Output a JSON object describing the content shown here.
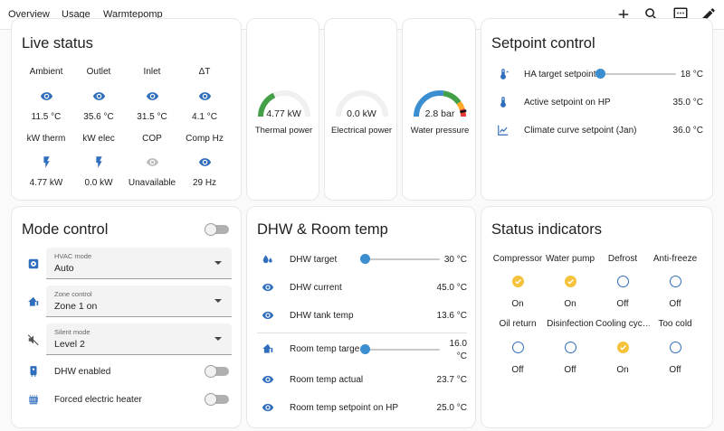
{
  "tabs": [
    {
      "label": "Overview"
    },
    {
      "label": "Usage"
    },
    {
      "label": "Warmtepomp"
    }
  ],
  "toolbar_icons": [
    "plus-icon",
    "search-icon",
    "chat-icon",
    "pencil-icon"
  ],
  "live_status": {
    "title": "Live status",
    "cells": [
      {
        "label": "Ambient",
        "value": "11.5 °C",
        "icon": "eye-icon"
      },
      {
        "label": "Outlet",
        "value": "35.6 °C",
        "icon": "eye-icon"
      },
      {
        "label": "Inlet",
        "value": "31.5 °C",
        "icon": "eye-icon"
      },
      {
        "label": "ΔT",
        "value": "4.1 °C",
        "icon": "eye-icon"
      },
      {
        "label": "kW therm",
        "value": "4.77 kW",
        "icon": "flash-icon"
      },
      {
        "label": "kW elec",
        "value": "0.0 kW",
        "icon": "flash-icon"
      },
      {
        "label": "COP",
        "value": "Unavailable",
        "icon": "eye-icon"
      },
      {
        "label": "Comp Hz",
        "value": "29 Hz",
        "icon": "eye-icon"
      }
    ]
  },
  "gauges": [
    {
      "value": "4.77 kW",
      "label": "Thermal power",
      "fraction": 0.36,
      "color": "#43a047"
    },
    {
      "value": "0.0 kW",
      "label": "Electrical power",
      "fraction": 0.0,
      "color": "#43a047"
    },
    {
      "value": "2.8 bar",
      "label": "Water pressure",
      "fraction": 0.93,
      "color": "#3b8ed0"
    }
  ],
  "setpoint_control": {
    "title": "Setpoint control",
    "rows": [
      {
        "label": "HA target setpoint",
        "value": "18 °C",
        "icon": "thermometer-icon",
        "slider": 0.0
      },
      {
        "label": "Active setpoint on HP",
        "value": "35.0 °C",
        "icon": "thermometer-icon"
      },
      {
        "label": "Climate curve setpoint (Jan)",
        "value": "36.0 °C",
        "icon": "chart-line-icon"
      }
    ]
  },
  "mode_control": {
    "title": "Mode control",
    "selects": [
      {
        "label": "HVAC mode",
        "value": "Auto",
        "icon": "hvac-icon"
      },
      {
        "label": "Zone control",
        "value": "Zone 1 on",
        "icon": "home-thermometer-icon"
      },
      {
        "label": "Silent mode",
        "value": "Level 2",
        "icon": "volume-off-icon"
      }
    ],
    "toggles": [
      {
        "label": "DHW enabled",
        "icon": "water-boiler-icon"
      },
      {
        "label": "Forced electric heater",
        "icon": "radiator-icon"
      }
    ]
  },
  "dhw_room": {
    "title": "DHW & Room temp",
    "rows": [
      {
        "label": "DHW target",
        "value": "30 °C",
        "icon": "water-icon",
        "slider": 0.0
      },
      {
        "label": "DHW current",
        "value": "45.0 °C",
        "icon": "eye-icon"
      },
      {
        "label": "DHW tank temp",
        "value": "13.6 °C",
        "icon": "eye-icon"
      },
      {
        "label": "Room temp targe…",
        "value": "16.0",
        "value2": "°C",
        "icon": "home-thermometer-icon",
        "slider": 0.0
      },
      {
        "label": "Room temp actual",
        "value": "23.7 °C",
        "icon": "eye-icon"
      },
      {
        "label": "Room temp setpoint on HP",
        "value": "25.0 °C",
        "icon": "eye-icon"
      }
    ]
  },
  "status_indicators": {
    "title": "Status indicators",
    "items": [
      {
        "label": "Compressor",
        "state": "On"
      },
      {
        "label": "Water pump",
        "state": "On"
      },
      {
        "label": "Defrost",
        "state": "Off"
      },
      {
        "label": "Anti-freeze",
        "state": "Off"
      },
      {
        "label": "Oil return",
        "state": "Off"
      },
      {
        "label": "Disinfection",
        "state": "Off"
      },
      {
        "label": "Cooling cyc…",
        "state": "On"
      },
      {
        "label": "Too cold",
        "state": "Off"
      }
    ]
  },
  "colors": {
    "accent": "#3b8ed0",
    "on": "#f5c33b",
    "icon": "#2f6dbd"
  }
}
